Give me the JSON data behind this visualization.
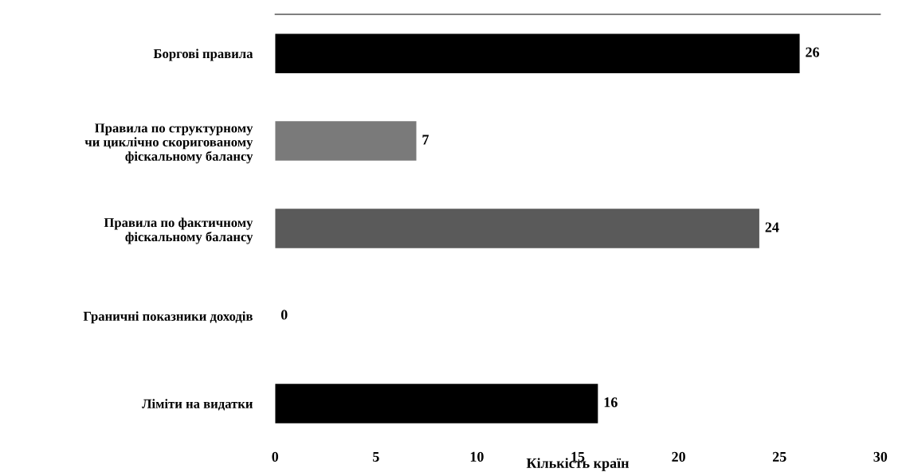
{
  "chart_data": {
    "type": "bar",
    "orientation": "horizontal",
    "xlabel": "Кількість країн",
    "categories": [
      "Боргові правила",
      "Правила по структурному\nчи циклічно скоригованому\nфіскальному балансу",
      "Правила по фактичному\nфіскальному балансу",
      "Граничні показники доходів",
      "Ліміти на видатки"
    ],
    "values": [
      26,
      7,
      24,
      0,
      16
    ],
    "colors": [
      "#000000",
      "#7a7a7a",
      "#5a5a5a",
      "#000000",
      "#000000"
    ],
    "xlim": [
      0,
      30
    ],
    "xticks": [
      0,
      5,
      10,
      15,
      20,
      25,
      30
    ],
    "data_labels": true,
    "grid": false,
    "legend": false
  }
}
